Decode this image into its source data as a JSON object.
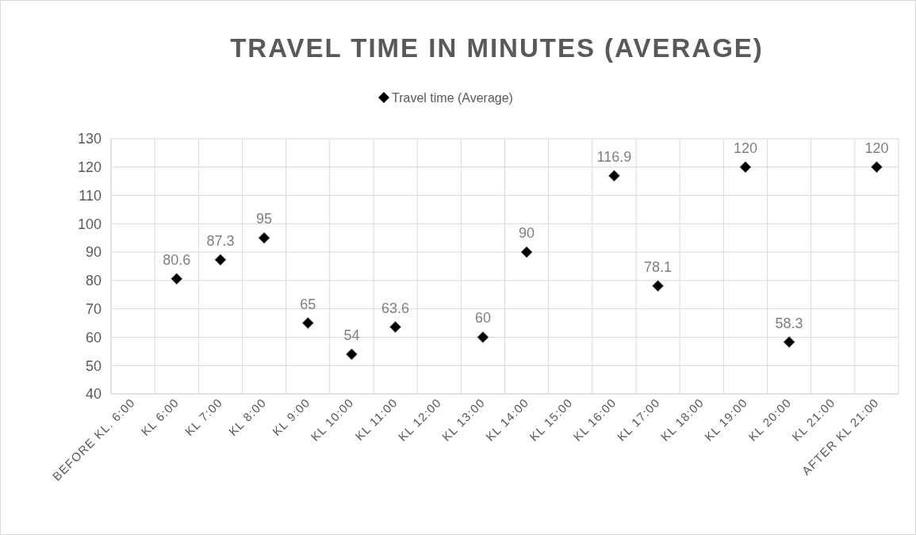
{
  "chart_data": {
    "type": "scatter",
    "title": "TRAVEL TIME IN MINUTES (AVERAGE)",
    "categories": [
      "BEFORE KL. 6:00",
      "KL 6:00",
      "KL 7:00",
      "KL 8:00",
      "KL 9:00",
      "KL 10:00",
      "KL 11:00",
      "KL 12:00",
      "KL 13:00",
      "KL 14:00",
      "KL 15:00",
      "KL 16:00",
      "KL 17:00",
      "KL 18:00",
      "KL 19:00",
      "KL 20:00",
      "KL 21:00",
      "AFTER KL 21:00"
    ],
    "series": [
      {
        "name": "Travel time (Average)",
        "color": "#000000",
        "values": [
          null,
          80.6,
          87.3,
          95,
          65,
          54,
          63.6,
          null,
          60,
          90,
          null,
          116.9,
          78.1,
          null,
          120,
          58.3,
          null,
          120
        ]
      }
    ],
    "ylim": [
      40,
      130
    ],
    "yticks": [
      40,
      50,
      60,
      70,
      80,
      90,
      100,
      110,
      120,
      130
    ],
    "grid": true,
    "legend": "top",
    "marker": "diamond",
    "data_labels": true
  }
}
